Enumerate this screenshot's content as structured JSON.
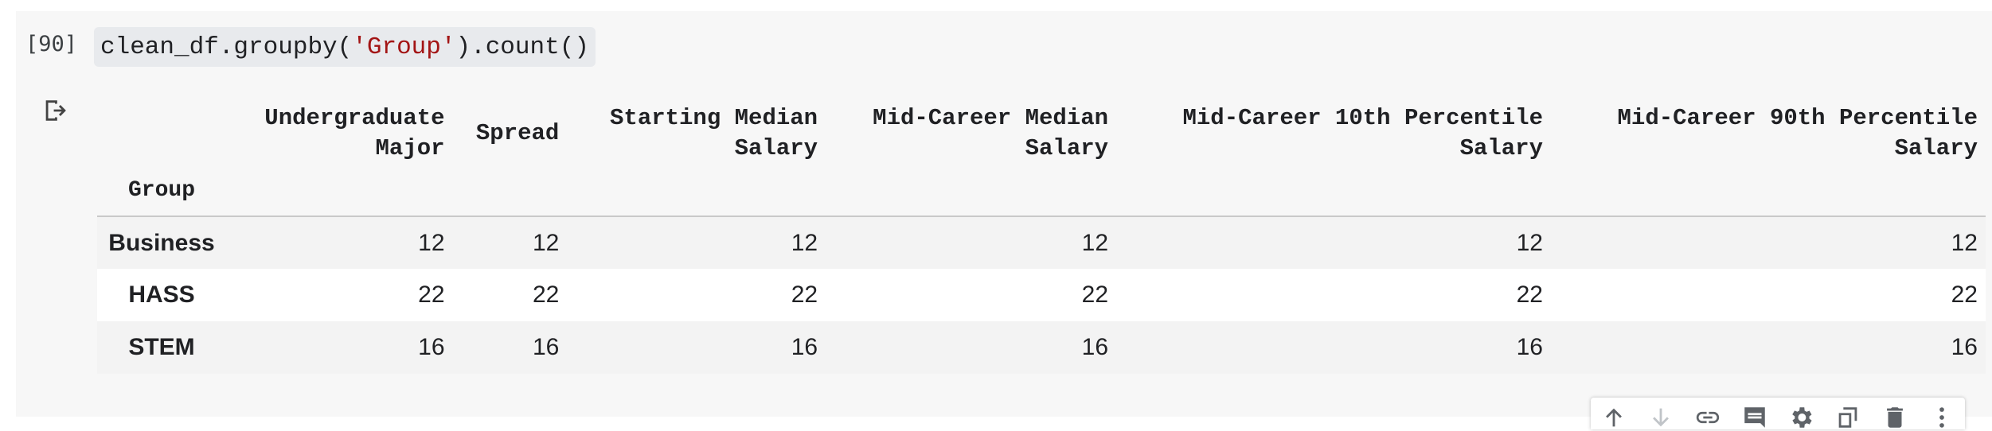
{
  "cell": {
    "execution_count": "[90]",
    "code": {
      "prefix": "clean_df.groupby(",
      "string_arg": "'Group'",
      "suffix": ").count()"
    }
  },
  "output": {
    "columns": [
      [
        "Undergraduate",
        "Major"
      ],
      [
        "Spread"
      ],
      [
        "Starting Median",
        "Salary"
      ],
      [
        "Mid-Career Median",
        "Salary"
      ],
      [
        "Mid-Career 10th Percentile",
        "Salary"
      ],
      [
        "Mid-Career 90th Percentile",
        "Salary"
      ]
    ],
    "index_name": "Group",
    "rows": [
      {
        "index": "Business",
        "values": [
          "12",
          "12",
          "12",
          "12",
          "12",
          "12"
        ]
      },
      {
        "index": "HASS",
        "values": [
          "22",
          "22",
          "22",
          "22",
          "22",
          "22"
        ]
      },
      {
        "index": "STEM",
        "values": [
          "16",
          "16",
          "16",
          "16",
          "16",
          "16"
        ]
      }
    ]
  },
  "toolbar": {
    "icons": [
      "arrow-up-icon",
      "arrow-down-icon",
      "link-icon",
      "comment-icon",
      "gear-icon",
      "mirror-cell-icon",
      "delete-icon",
      "more-vert-icon"
    ]
  }
}
